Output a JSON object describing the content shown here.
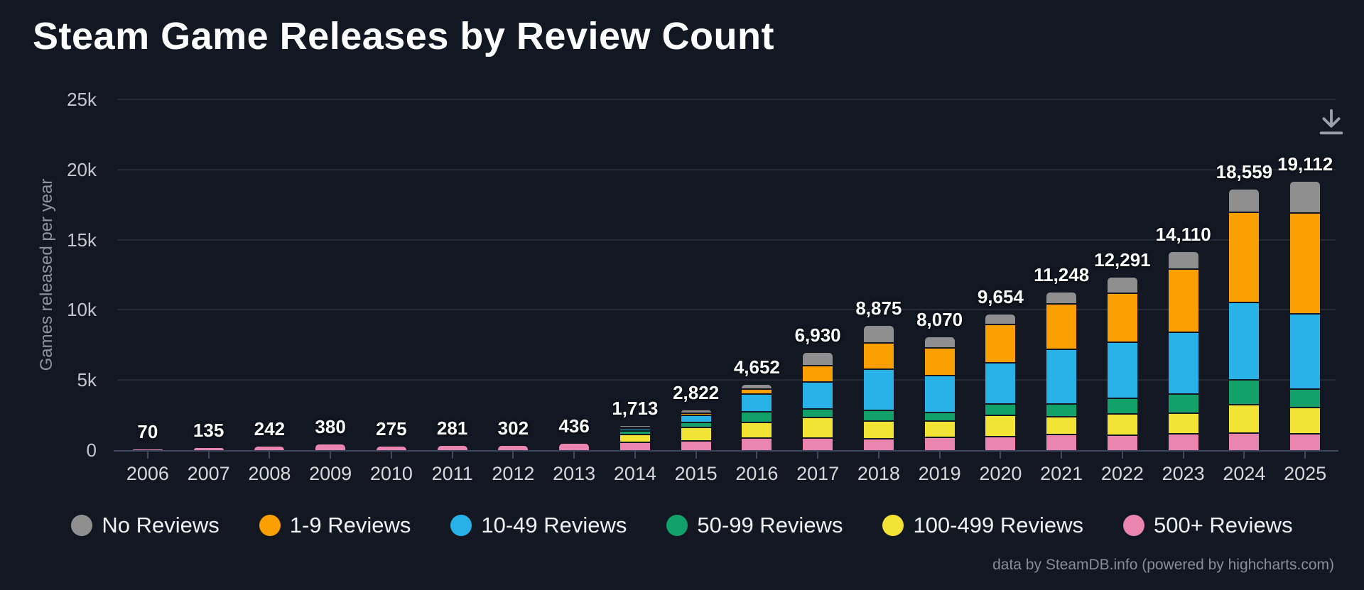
{
  "title": "Steam Game Releases by Review Count",
  "y_axis": {
    "title": "Games released per year",
    "ticks": [
      {
        "value": 25000,
        "label": "25k"
      },
      {
        "value": 20000,
        "label": "20k"
      },
      {
        "value": 15000,
        "label": "15k"
      },
      {
        "value": 10000,
        "label": "10k"
      },
      {
        "value": 5000,
        "label": "5k"
      },
      {
        "value": 0,
        "label": "0"
      }
    ]
  },
  "toolbar": {
    "export_icon": "download-icon"
  },
  "footer": {
    "credit": "data by SteamDB.info (powered by highcharts.com)"
  },
  "colors": {
    "background": "#131722",
    "gridline": "#262b36",
    "axis": "#3e4960",
    "title_text": "#ffffff",
    "icon": "#99a0aa"
  },
  "chart_data": {
    "type": "bar",
    "stacking": "stacked-column",
    "title": "Steam Game Releases by Review Count",
    "xlabel": "",
    "ylabel": "Games released per year",
    "ylim": [
      0,
      25000
    ],
    "grid": true,
    "legend_position": "bottom",
    "categories": [
      "2006",
      "2007",
      "2008",
      "2009",
      "2010",
      "2011",
      "2012",
      "2013",
      "2014",
      "2015",
      "2016",
      "2017",
      "2018",
      "2019",
      "2020",
      "2021",
      "2022",
      "2023",
      "2024",
      "2025"
    ],
    "totals": [
      70,
      135,
      242,
      380,
      275,
      281,
      302,
      436,
      1713,
      2822,
      4652,
      6930,
      8875,
      8070,
      9654,
      11248,
      12291,
      14110,
      18559,
      19112
    ],
    "total_labels": [
      "70",
      "135",
      "242",
      "380",
      "275",
      "281",
      "302",
      "436",
      "1,713",
      "2,822",
      "4,652",
      "6,930",
      "8,875",
      "8,070",
      "9,654",
      "11,248",
      "12,291",
      "14,110",
      "18,559",
      "19,112"
    ],
    "series": [
      {
        "name": "No Reviews",
        "color": "#8f8f8f",
        "values": [
          0,
          0,
          0,
          0,
          0,
          0,
          0,
          0,
          25,
          145,
          275,
          873,
          1205,
          740,
          660,
          778,
          1059,
          1148,
          1559,
          2147
        ]
      },
      {
        "name": "1-9 Reviews",
        "color": "#f9a000",
        "values": [
          0,
          0,
          0,
          0,
          0,
          0,
          0,
          0,
          30,
          130,
          340,
          1136,
          1868,
          1985,
          2718,
          3227,
          3480,
          4529,
          6448,
          7177
        ]
      },
      {
        "name": "10-49 Reviews",
        "color": "#29b2e8",
        "values": [
          0,
          0,
          0,
          0,
          0,
          0,
          0,
          0,
          170,
          510,
          1270,
          1953,
          2916,
          2596,
          2932,
          3899,
          3986,
          4362,
          5513,
          5411
        ]
      },
      {
        "name": "50-99 Reviews",
        "color": "#12a169",
        "values": [
          0,
          0,
          0,
          0,
          0,
          0,
          0,
          0,
          250,
          380,
          760,
          591,
          764,
          627,
          799,
          936,
          1155,
          1374,
          1746,
          1288
        ]
      },
      {
        "name": "100-499 Reviews",
        "color": "#f2e435",
        "values": [
          0,
          0,
          0,
          0,
          0,
          0,
          0,
          0,
          598,
          930,
          1110,
          1476,
          1272,
          1155,
          1527,
          1237,
          1476,
          1475,
          2021,
          1867
        ]
      },
      {
        "name": "500+ Reviews",
        "color": "#e985af",
        "values": [
          70,
          135,
          242,
          380,
          275,
          281,
          302,
          436,
          640,
          727,
          897,
          901,
          850,
          967,
          1018,
          1171,
          1135,
          1222,
          1272,
          1222
        ]
      }
    ]
  }
}
